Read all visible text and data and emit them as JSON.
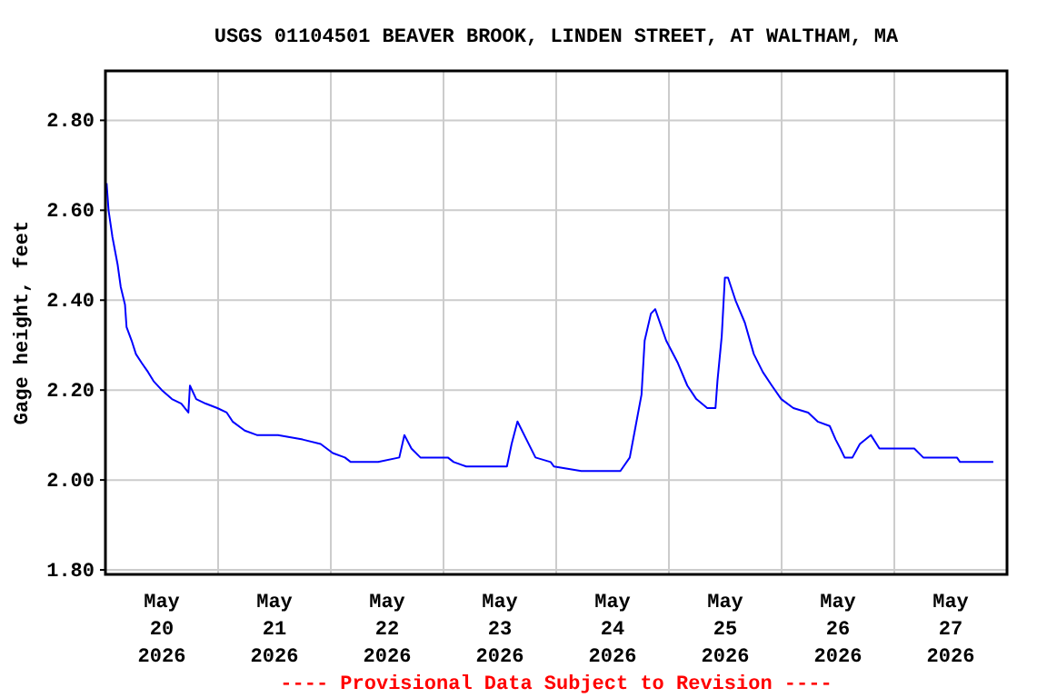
{
  "chart_data": {
    "type": "line",
    "title": "USGS 01104501 BEAVER BROOK, LINDEN STREET, AT WALTHAM, MA",
    "ylabel": "Gage height, feet",
    "annotations": [
      "---- Provisional Data Subject to Revision ----"
    ],
    "x": [
      "2026-05-20T00:15",
      "2026-05-20T00:40",
      "2026-05-20T01:30",
      "2026-05-20T02:35",
      "2026-05-20T03:15",
      "2026-05-20T04:10",
      "2026-05-20T04:30",
      "2026-05-20T05:35",
      "2026-05-20T06:30",
      "2026-05-20T07:45",
      "2026-05-20T09:05",
      "2026-05-20T10:15",
      "2026-05-20T12:00",
      "2026-05-20T14:10",
      "2026-05-20T16:10",
      "2026-05-20T17:40",
      "2026-05-20T18:00",
      "2026-05-20T19:20",
      "2026-05-20T21:20",
      "2026-05-20T23:50",
      "2026-05-21T01:50",
      "2026-05-21T03:05",
      "2026-05-21T05:40",
      "2026-05-21T08:15",
      "2026-05-21T12:45",
      "2026-05-21T18:00",
      "2026-05-21T21:50",
      "2026-05-22T00:25",
      "2026-05-22T03:00",
      "2026-05-22T04:15",
      "2026-05-22T10:05",
      "2026-05-22T14:35",
      "2026-05-22T15:40",
      "2026-05-22T17:10",
      "2026-05-22T19:05",
      "2026-05-23T00:55",
      "2026-05-23T02:10",
      "2026-05-23T04:50",
      "2026-05-23T13:30",
      "2026-05-23T14:30",
      "2026-05-23T15:45",
      "2026-05-23T17:40",
      "2026-05-23T19:35",
      "2026-05-23T22:50",
      "2026-05-23T23:30",
      "2026-05-24T05:20",
      "2026-05-24T13:40",
      "2026-05-24T15:40",
      "2026-05-24T16:55",
      "2026-05-24T18:10",
      "2026-05-24T18:50",
      "2026-05-24T20:10",
      "2026-05-24T21:05",
      "2026-05-24T23:25",
      "2026-05-25T01:55",
      "2026-05-25T03:55",
      "2026-05-25T05:50",
      "2026-05-25T08:10",
      "2026-05-25T09:55",
      "2026-05-25T10:20",
      "2026-05-25T11:15",
      "2026-05-25T11:55",
      "2026-05-25T12:35",
      "2026-05-25T14:10",
      "2026-05-25T16:10",
      "2026-05-25T18:05",
      "2026-05-25T20:00",
      "2026-05-25T21:55",
      "2026-05-25T23:55",
      "2026-05-26T02:30",
      "2026-05-26T05:40",
      "2026-05-26T07:40",
      "2026-05-26T10:15",
      "2026-05-26T11:30",
      "2026-05-26T12:30",
      "2026-05-26T13:25",
      "2026-05-26T15:05",
      "2026-05-26T16:40",
      "2026-05-26T19:00",
      "2026-05-26T20:50",
      "2026-05-26T23:45",
      "2026-05-27T04:15",
      "2026-05-27T06:10",
      "2026-05-27T13:20",
      "2026-05-27T14:00",
      "2026-05-27T21:05"
    ],
    "series": [
      {
        "color": "#0000ff",
        "values": [
          2.66,
          2.6,
          2.54,
          2.48,
          2.43,
          2.39,
          2.34,
          2.31,
          2.28,
          2.26,
          2.24,
          2.22,
          2.2,
          2.18,
          2.17,
          2.15,
          2.21,
          2.18,
          2.17,
          2.16,
          2.15,
          2.13,
          2.11,
          2.1,
          2.1,
          2.09,
          2.08,
          2.06,
          2.05,
          2.04,
          2.04,
          2.05,
          2.1,
          2.07,
          2.05,
          2.05,
          2.04,
          2.03,
          2.03,
          2.08,
          2.13,
          2.09,
          2.05,
          2.04,
          2.03,
          2.02,
          2.02,
          2.05,
          2.12,
          2.19,
          2.31,
          2.37,
          2.38,
          2.31,
          2.26,
          2.21,
          2.18,
          2.16,
          2.16,
          2.22,
          2.32,
          2.45,
          2.45,
          2.4,
          2.35,
          2.28,
          2.24,
          2.21,
          2.18,
          2.16,
          2.15,
          2.13,
          2.12,
          2.09,
          2.07,
          2.05,
          2.05,
          2.08,
          2.1,
          2.07,
          2.07,
          2.07,
          2.05,
          2.05,
          2.04,
          2.04
        ]
      }
    ],
    "xlim": [
      "2026-05-20T00:00",
      "2026-05-28T00:00"
    ],
    "xticks": [
      {
        "value": "2026-05-20T00:00",
        "label": null
      },
      {
        "value": "2026-05-20T12:00",
        "label": "May\n20\n2026"
      },
      {
        "value": "2026-05-21T00:00",
        "label": null
      },
      {
        "value": "2026-05-21T12:00",
        "label": "May\n21\n2026"
      },
      {
        "value": "2026-05-22T00:00",
        "label": null
      },
      {
        "value": "2026-05-22T12:00",
        "label": "May\n22\n2026"
      },
      {
        "value": "2026-05-23T00:00",
        "label": null
      },
      {
        "value": "2026-05-23T12:00",
        "label": "May\n23\n2026"
      },
      {
        "value": "2026-05-24T00:00",
        "label": null
      },
      {
        "value": "2026-05-24T12:00",
        "label": "May\n24\n2026"
      },
      {
        "value": "2026-05-25T00:00",
        "label": null
      },
      {
        "value": "2026-05-25T12:00",
        "label": "May\n25\n2026"
      },
      {
        "value": "2026-05-26T00:00",
        "label": null
      },
      {
        "value": "2026-05-26T12:00",
        "label": "May\n26\n2026"
      },
      {
        "value": "2026-05-27T00:00",
        "label": null
      },
      {
        "value": "2026-05-27T12:00",
        "label": "May\n27\n2026"
      },
      {
        "value": "2026-05-28T00:00",
        "label": null
      }
    ],
    "ylim": [
      1.79,
      2.91
    ],
    "yticks": [
      {
        "value": 1.8,
        "label": "1.80"
      },
      {
        "value": 2.0,
        "label": "2.00"
      },
      {
        "value": 2.2,
        "label": "2.20"
      },
      {
        "value": 2.4,
        "label": "2.40"
      },
      {
        "value": 2.6,
        "label": "2.60"
      },
      {
        "value": 2.8,
        "label": "2.80"
      }
    ],
    "grid": true,
    "line_style": "solid"
  }
}
